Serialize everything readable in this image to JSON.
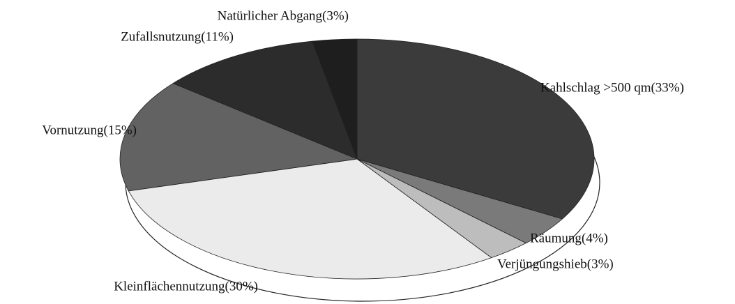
{
  "chart_data": {
    "type": "pie",
    "categories": [
      "Kahlschlag >500 qm(33%)",
      "Räumung(4%)",
      "Verjüngungshieb(3%)",
      "Kleinflächennutzung(30%)",
      "Vornutzung(15%)",
      "Zufallsnutzung(11%)",
      "Natürlicher Abgang(3%)"
    ],
    "values": [
      33,
      4,
      3,
      30,
      15,
      11,
      3
    ],
    "colors": [
      "#3b3b3b",
      "#7a7a7a",
      "#bdbdbd",
      "#ebebeb",
      "#626262",
      "#2c2c2c",
      "#1e1e1e"
    ]
  }
}
